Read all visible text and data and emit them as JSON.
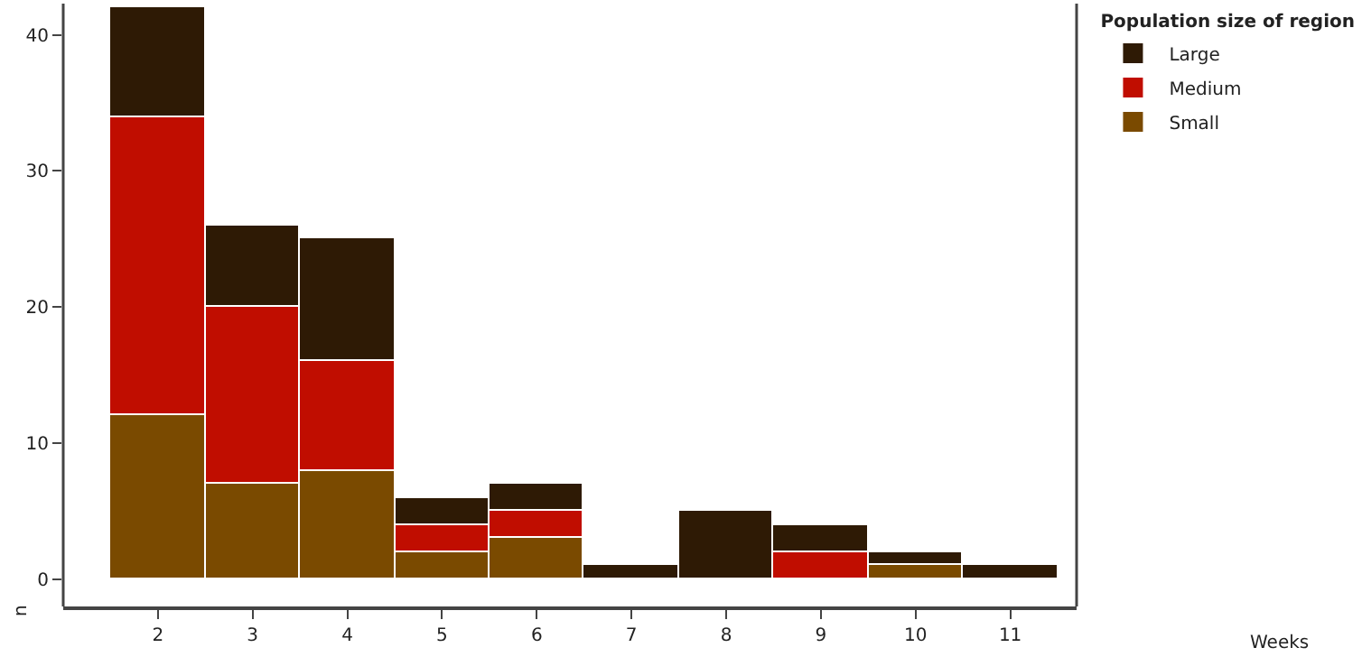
{
  "chart_data": {
    "type": "bar",
    "stacked": true,
    "annotations": [
      "Weeks"
    ],
    "ylabel": "n",
    "legend_title": "Population size of region",
    "legend": "top right",
    "categories": [
      "2",
      "3",
      "4",
      "5",
      "6",
      "7",
      "8",
      "9",
      "10",
      "11"
    ],
    "series": [
      {
        "name": "Small",
        "color": "#7a4a00",
        "values": [
          12,
          7,
          8,
          2,
          3,
          0,
          0,
          0,
          1,
          0
        ]
      },
      {
        "name": "Medium",
        "color": "#c00d00",
        "values": [
          22,
          13,
          8,
          2,
          2,
          0,
          0,
          2,
          0,
          0
        ]
      },
      {
        "name": "Large",
        "color": "#2e1a05",
        "values": [
          8,
          6,
          9,
          2,
          2,
          1,
          5,
          2,
          1,
          1
        ]
      }
    ],
    "ylim": [
      -2,
      42.3
    ],
    "yticks": [
      0,
      10,
      20,
      30,
      40
    ],
    "grid": false
  }
}
